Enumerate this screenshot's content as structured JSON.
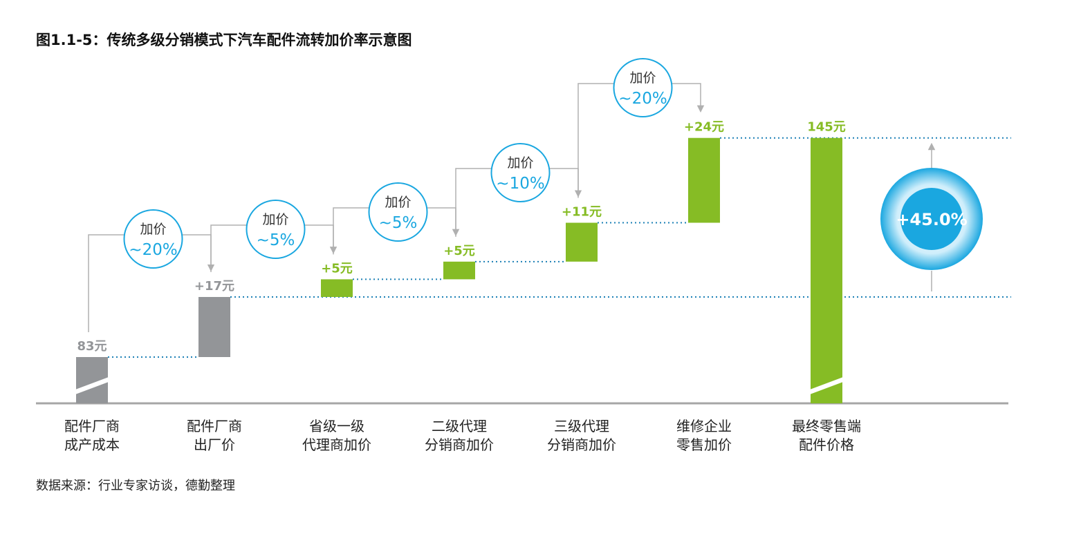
{
  "title": "图1.1-5：传统多级分销模式下汽车配件流转加价率示意图",
  "source": "数据来源：行业专家访谈，德勤整理",
  "colors": {
    "gray": "#939598",
    "green": "#86bc25",
    "blue": "#1aa7e0",
    "dotted": "#1a7fb5"
  },
  "chart_data": {
    "type": "bar",
    "subtype": "waterfall",
    "categories": [
      [
        "配件厂商",
        "成产成本"
      ],
      [
        "配件厂商",
        "出厂价"
      ],
      [
        "省级一级",
        "代理商加价"
      ],
      [
        "二级代理",
        "分销商加价"
      ],
      [
        "三级代理",
        "分销商加价"
      ],
      [
        "维修企业",
        "零售加价"
      ],
      [
        "最终零售端",
        "配件价格"
      ]
    ],
    "values": [
      83,
      17,
      5,
      5,
      11,
      24,
      145
    ],
    "value_labels": [
      "83元",
      "+17元",
      "+5元",
      "+5元",
      "+11元",
      "+24元",
      "145元"
    ],
    "markup_bubbles": [
      {
        "top": "加价",
        "pct": "~20%"
      },
      {
        "top": "加价",
        "pct": "~5%"
      },
      {
        "top": "加价",
        "pct": "~5%"
      },
      {
        "top": "加价",
        "pct": "~10%"
      },
      {
        "top": "加价",
        "pct": "~20%"
      }
    ],
    "total_increase": "+45.0%"
  }
}
